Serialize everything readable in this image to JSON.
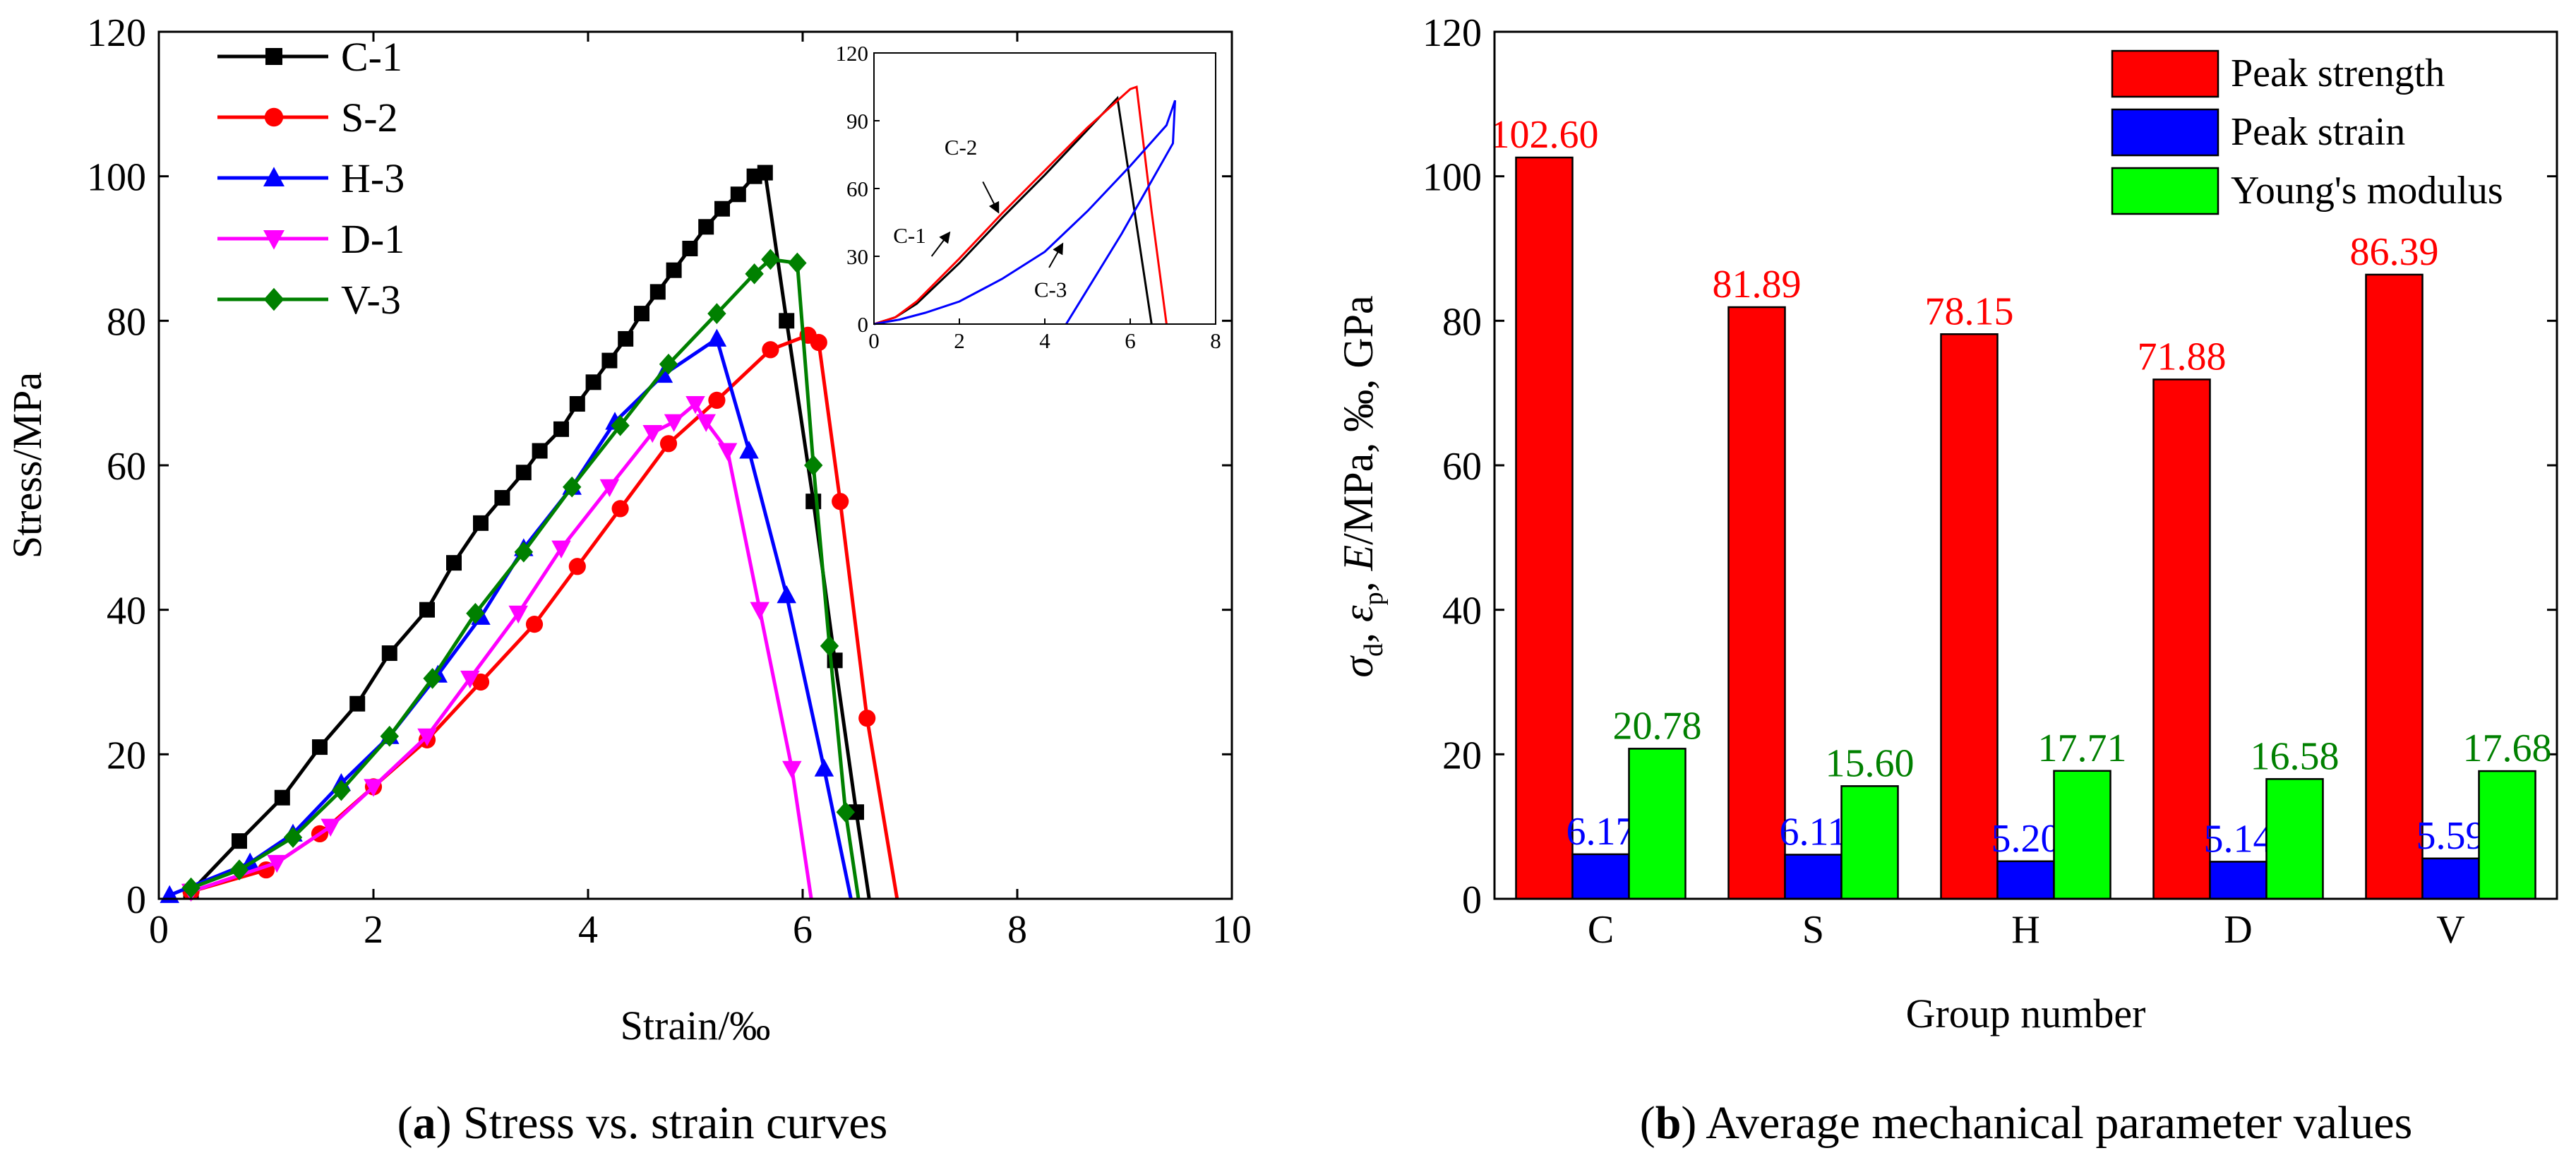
{
  "chart_data": [
    {
      "type": "line",
      "panel_label": "a",
      "title": "Stress vs. strain curves",
      "xlabel": "Strain/‰",
      "ylabel": "Stress/MPa",
      "xlim": [
        0,
        10
      ],
      "ylim": [
        0,
        120
      ],
      "xticks": [
        0,
        2,
        4,
        6,
        8,
        10
      ],
      "yticks": [
        0,
        20,
        40,
        60,
        80,
        100,
        120
      ],
      "legend_position": "top-left",
      "colors": {
        "C-1": "#000000",
        "S-2": "#ff0000",
        "H-3": "#0000ff",
        "D-1": "#ff00ff",
        "V-3": "#008000"
      },
      "series": [
        {
          "name": "C-1",
          "marker": "square",
          "x": [
            0.3,
            0.75,
            1.15,
            1.5,
            1.85,
            2.15,
            2.5,
            2.75,
            3.0,
            3.2,
            3.4,
            3.55,
            3.75,
            3.9,
            4.05,
            4.2,
            4.35,
            4.5,
            4.65,
            4.8,
            4.95,
            5.1,
            5.25,
            5.4,
            5.55,
            5.65,
            5.85,
            6.1,
            6.3,
            6.5,
            6.62
          ],
          "y": [
            1,
            8,
            14,
            21,
            27,
            34,
            40,
            46.5,
            52,
            55.5,
            59,
            62,
            65,
            68.5,
            71.5,
            74.5,
            77.5,
            81,
            84,
            87,
            90,
            93,
            95.5,
            97.5,
            100,
            100.5,
            80,
            55,
            33,
            12,
            0
          ]
        },
        {
          "name": "S-2",
          "marker": "circle",
          "x": [
            0.3,
            1.0,
            1.5,
            2.0,
            2.5,
            3.0,
            3.5,
            3.9,
            4.3,
            4.75,
            5.2,
            5.7,
            6.05,
            6.15,
            6.35,
            6.6,
            6.88
          ],
          "y": [
            1,
            4,
            9,
            15.5,
            22,
            30,
            38,
            46,
            54,
            63,
            69,
            76,
            78,
            77,
            55,
            25,
            0
          ]
        },
        {
          "name": "H-3",
          "marker": "triangle-up",
          "x": [
            0.1,
            0.85,
            1.25,
            1.7,
            2.15,
            2.6,
            3.0,
            3.4,
            3.85,
            4.25,
            4.7,
            5.2,
            5.5,
            5.85,
            6.2,
            6.45
          ],
          "y": [
            0.5,
            5,
            9,
            16,
            22.5,
            31,
            39,
            48.5,
            57,
            66,
            72.5,
            77.5,
            62,
            42,
            18,
            0
          ]
        },
        {
          "name": "D-1",
          "marker": "triangle-down",
          "x": [
            0.3,
            1.1,
            1.6,
            2.0,
            2.5,
            2.9,
            3.35,
            3.75,
            4.2,
            4.6,
            4.8,
            5.0,
            5.1,
            5.3,
            5.6,
            5.9,
            6.08
          ],
          "y": [
            1,
            5,
            10,
            15.5,
            22.5,
            30.5,
            39.5,
            48.5,
            57,
            64.5,
            66,
            68.5,
            66,
            62,
            40,
            18,
            0
          ]
        },
        {
          "name": "V-3",
          "marker": "diamond",
          "x": [
            0.3,
            0.75,
            1.25,
            1.7,
            2.15,
            2.55,
            2.95,
            3.4,
            3.85,
            4.3,
            4.75,
            5.2,
            5.55,
            5.7,
            5.95,
            6.1,
            6.25,
            6.4,
            6.52
          ],
          "y": [
            1.5,
            4,
            8.5,
            15,
            22.5,
            30.5,
            39.5,
            48,
            57,
            65.5,
            74,
            81,
            86.5,
            88.5,
            88,
            60,
            35,
            12,
            0
          ]
        }
      ],
      "inset": {
        "xlim": [
          0,
          8
        ],
        "ylim": [
          0,
          120
        ],
        "xticks": [
          0,
          2,
          4,
          6,
          8
        ],
        "yticks": [
          0,
          30,
          60,
          90,
          120
        ],
        "series": [
          {
            "name": "C-1",
            "color": "#000000",
            "x": [
              0,
              0.5,
              1,
              2,
              3,
              4,
              5,
              5.6,
              5.7,
              6.1,
              6.5
            ],
            "y": [
              0,
              3,
              9,
              27,
              47,
              66,
              86,
              98,
              100,
              50,
              0
            ]
          },
          {
            "name": "C-2",
            "color": "#ff0000",
            "x": [
              0,
              0.5,
              1,
              2,
              3,
              4,
              5,
              6,
              6.15,
              6.5,
              6.85
            ],
            "y": [
              0,
              3,
              10,
              29,
              49,
              68,
              87,
              104,
              105,
              50,
              0
            ]
          },
          {
            "name": "C-3",
            "color": "#0000ff",
            "x": [
              0,
              0.6,
              1.2,
              2,
              3,
              4,
              5,
              6,
              6.85,
              7.05,
              7.05,
              7.0,
              5.8,
              4.5
            ],
            "y": [
              0,
              2,
              5,
              10,
              20,
              32,
              50,
              70,
              88,
              99,
              99,
              80,
              40,
              0
            ]
          }
        ],
        "annotations": [
          "C-1",
          "C-2",
          "C-3"
        ]
      }
    },
    {
      "type": "bar",
      "panel_label": "b",
      "title": "Average mechanical parameter values",
      "xlabel": "Group number",
      "ylabel": "σd, εp, E/MPa, ‰, GPa",
      "ylabel_parts": {
        "s1": "σ",
        "s1sub": "d",
        "sep1": ", ",
        "s2": "ε",
        "s2sub": "p",
        "sep2": ", ",
        "s3": "E",
        "rest": "/MPa, ‰, GPa"
      },
      "ylim": [
        0,
        120
      ],
      "yticks": [
        0,
        20,
        40,
        60,
        80,
        100,
        120
      ],
      "legend_position": "top-right",
      "categories": [
        "C",
        "S",
        "H",
        "D",
        "V"
      ],
      "series": [
        {
          "name": "Peak strength",
          "color": "#ff0000",
          "label_color": "#ff0000",
          "values": [
            102.6,
            81.89,
            78.15,
            71.88,
            86.39
          ],
          "labels": [
            "102.60",
            "81.89",
            "78.15",
            "71.88",
            "86.39"
          ]
        },
        {
          "name": "Peak strain",
          "color": "#0000ff",
          "label_color": "#0000ff",
          "values": [
            6.17,
            6.11,
            5.2,
            5.14,
            5.59
          ],
          "labels": [
            "6.17",
            "6.11",
            "5.20",
            "5.14",
            "5.59"
          ]
        },
        {
          "name": "Young's modulus",
          "color": "#00ff00",
          "label_color": "#008000",
          "values": [
            20.78,
            15.6,
            17.71,
            16.58,
            17.68
          ],
          "labels": [
            "20.78",
            "15.60",
            "17.71",
            "16.58",
            "17.68"
          ]
        }
      ]
    }
  ]
}
